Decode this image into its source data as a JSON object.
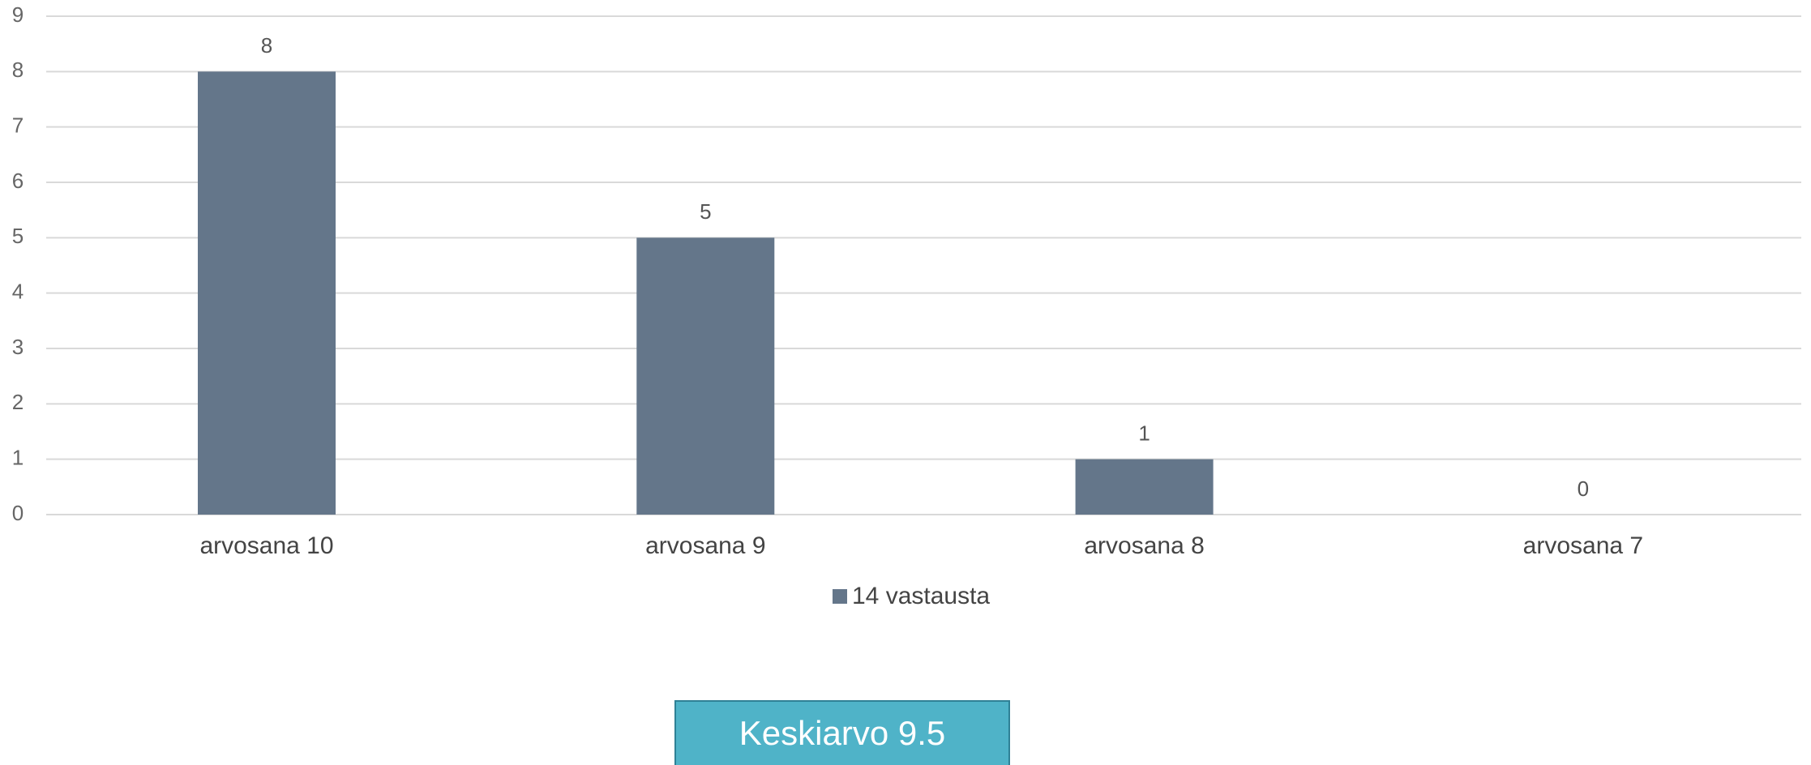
{
  "chart_data": {
    "type": "bar",
    "categories": [
      "arvosana 10",
      "arvosana 9",
      "arvosana 8",
      "arvosana 7"
    ],
    "series": [
      {
        "name": "14 vastausta",
        "color": "#64768a",
        "values": [
          8,
          5,
          1,
          0
        ]
      }
    ],
    "ylim": [
      0,
      9
    ],
    "yticks": [
      0,
      1,
      2,
      3,
      4,
      5,
      6,
      7,
      8,
      9
    ],
    "grid": true,
    "legend": "bottom",
    "annotation": "Keskiarvo 9.5"
  }
}
